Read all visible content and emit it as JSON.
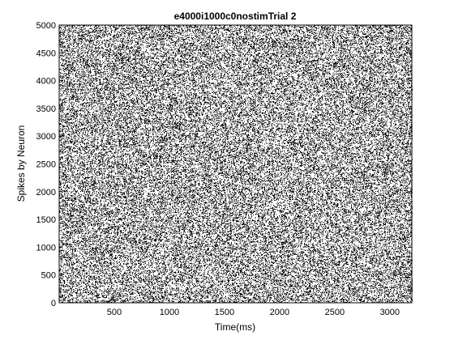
{
  "chart_data": {
    "type": "scatter",
    "title": "e4000i1000c0nostimTrial 2",
    "xlabel": "Time(ms)",
    "ylabel": "Spikes by Neuron",
    "xlim": [
      0,
      3200
    ],
    "ylim": [
      0,
      5000
    ],
    "x_ticks": [
      500,
      1000,
      1500,
      2000,
      2500,
      3000
    ],
    "y_ticks": [
      0,
      500,
      1000,
      1500,
      2000,
      2500,
      3000,
      3500,
      4000,
      4500,
      5000
    ],
    "grid": false,
    "legend": "none",
    "marker_color": "#000000",
    "series": [
      {
        "name": "",
        "description": "dense raster of spike events across all neurons, approximately uniform over 0–3200 ms and neurons 0–5000",
        "x_range": [
          0,
          3200
        ],
        "y_range": [
          0,
          5000
        ]
      }
    ]
  }
}
